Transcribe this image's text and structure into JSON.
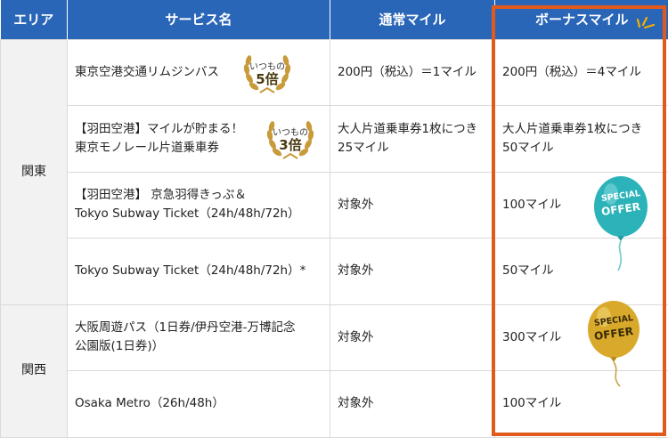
{
  "header": {
    "area": "エリア",
    "service": "サービス名",
    "normal": "通常マイル",
    "bonus": "ボーナスマイル"
  },
  "regions": {
    "kanto": "関東",
    "kansai": "関西"
  },
  "rows": [
    {
      "service_line1": "東京空港交通リムジンバス",
      "service_line2": "",
      "normal": "200円（税込）＝1マイル",
      "normal_line2": "",
      "bonus": "200円（税込）＝4マイル",
      "bonus_line2": "",
      "badge_top": "いつもの",
      "badge_main": "5倍"
    },
    {
      "service_line1": "【羽田空港】マイルが貯まる！",
      "service_line2": "東京モノレール片道乗車券",
      "normal": "大人片道乗車券1枚につき",
      "normal_line2": "25マイル",
      "bonus": "大人片道乗車券1枚につき",
      "bonus_line2": "50マイル",
      "badge_top": "いつもの",
      "badge_main": "3倍"
    },
    {
      "service_line1": "【羽田空港】 京急羽得きっぷ＆",
      "service_line2": "Tokyo Subway Ticket（24h/48h/72h）",
      "normal": "対象外",
      "bonus": "100マイル"
    },
    {
      "service_line1": "Tokyo Subway Ticket（24h/48h/72h）*",
      "service_line2": "",
      "normal": "対象外",
      "bonus": "50マイル"
    },
    {
      "service_line1": "大阪周遊パス（1日券/伊丹空港-万博記念",
      "service_line2": "公園版(1日券)）",
      "normal": "対象外",
      "bonus": "300マイル"
    },
    {
      "service_line1": "Osaka Metro（26h/48h）",
      "service_line2": "",
      "normal": "対象外",
      "bonus": "100マイル"
    }
  ],
  "balloons": {
    "teal": {
      "line1": "SPECIAL",
      "line2": "OFFER",
      "color": "#2bb3b9"
    },
    "gold": {
      "line1": "SPECIAL",
      "line2": "OFFER",
      "color": "#d8a92a"
    }
  },
  "colors": {
    "header_bg": "#2a66b8",
    "highlight_frame": "#e05a1b",
    "area_bg": "#f2f2f2"
  }
}
